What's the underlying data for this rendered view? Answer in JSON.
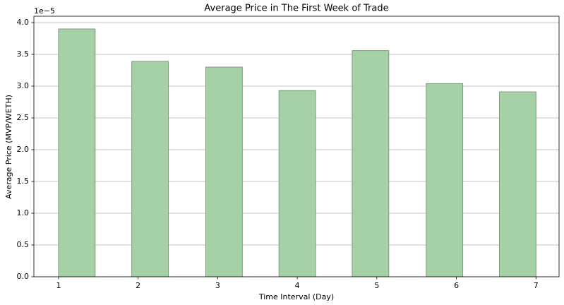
{
  "chart_data": {
    "type": "bar",
    "title": "Average Price in The First Week of Trade",
    "x_label": "Time Interval (Day)",
    "y_label": "Average Price (MVP/WETH)",
    "y_offset_text": "1e−5",
    "x": [
      1.23,
      2.15,
      3.08,
      4.0,
      4.92,
      5.85,
      6.77
    ],
    "values": [
      3.9,
      3.39,
      3.3,
      2.93,
      3.56,
      3.04,
      2.91
    ],
    "color": "#a6d1a6",
    "edge_color": "#7f9a7f",
    "xlim": [
      0.69,
      7.29
    ],
    "xticks": [
      1,
      2,
      3,
      4,
      5,
      6,
      7
    ],
    "ylim": [
      0,
      4.1
    ],
    "yticks": [
      {
        "value": 0,
        "label": "0.0"
      },
      0.5,
      {
        "value": 1,
        "label": "1.0"
      },
      1.5,
      {
        "value": 2,
        "label": "2.0"
      },
      2.5,
      {
        "value": 3,
        "label": "3.0"
      },
      3.5,
      {
        "value": 4,
        "label": "4.0"
      }
    ],
    "grid": true
  }
}
